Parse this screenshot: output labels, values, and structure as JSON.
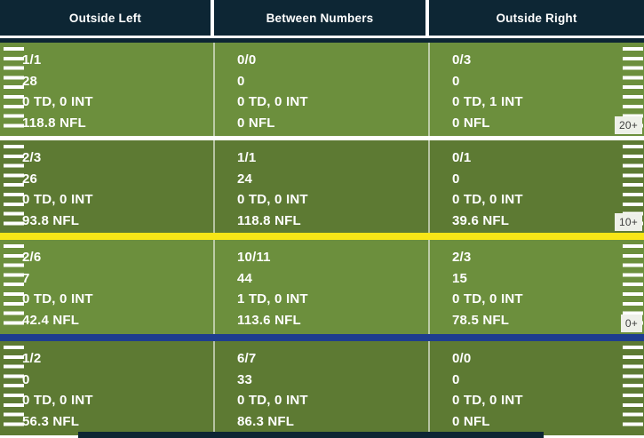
{
  "colors": {
    "header_navy": "#0d2634",
    "field_green_light": "#6c8f3d",
    "field_green_dark": "#5d7a33",
    "first_down_yellow": "#f7e617",
    "deep_line_blue": "#1e3d8f",
    "marker_background": "#eef0e9",
    "text_white": "#ffffff"
  },
  "chart_data": {
    "type": "table",
    "columns": [
      "Outside Left",
      "Between Numbers",
      "Outside Right"
    ],
    "yard_markers": [
      "20+",
      "10+",
      "0+"
    ],
    "row_shading": [
      "light",
      "dark",
      "light",
      "dark"
    ],
    "separators_after_rows": [
      "white-gap",
      "yellow-line",
      "blue-line",
      "none"
    ],
    "rows": [
      {
        "zone": "20+",
        "cells": [
          {
            "comp_att": "1/1",
            "yards": "28",
            "td_int": "0 TD, 0 INT",
            "rating": "118.8 NFL"
          },
          {
            "comp_att": "0/0",
            "yards": "0",
            "td_int": "0 TD, 0 INT",
            "rating": "0 NFL"
          },
          {
            "comp_att": "0/3",
            "yards": "0",
            "td_int": "0 TD, 1 INT",
            "rating": "0 NFL"
          }
        ]
      },
      {
        "zone": "10+",
        "cells": [
          {
            "comp_att": "2/3",
            "yards": "26",
            "td_int": "0 TD, 0 INT",
            "rating": "93.8 NFL"
          },
          {
            "comp_att": "1/1",
            "yards": "24",
            "td_int": "0 TD, 0 INT",
            "rating": "118.8 NFL"
          },
          {
            "comp_att": "0/1",
            "yards": "0",
            "td_int": "0 TD, 0 INT",
            "rating": "39.6 NFL"
          }
        ]
      },
      {
        "zone": "0+",
        "cells": [
          {
            "comp_att": "2/6",
            "yards": "7",
            "td_int": "0 TD, 0 INT",
            "rating": "42.4 NFL"
          },
          {
            "comp_att": "10/11",
            "yards": "44",
            "td_int": "1 TD, 0 INT",
            "rating": "113.6 NFL"
          },
          {
            "comp_att": "2/3",
            "yards": "15",
            "td_int": "0 TD, 0 INT",
            "rating": "78.5 NFL"
          }
        ]
      },
      {
        "zone": "",
        "cells": [
          {
            "comp_att": "1/2",
            "yards": "0",
            "td_int": "0 TD, 0 INT",
            "rating": "56.3 NFL"
          },
          {
            "comp_att": "6/7",
            "yards": "33",
            "td_int": "0 TD, 0 INT",
            "rating": "86.3 NFL"
          },
          {
            "comp_att": "0/0",
            "yards": "0",
            "td_int": "0 TD, 0 INT",
            "rating": "0 NFL"
          }
        ]
      }
    ]
  }
}
